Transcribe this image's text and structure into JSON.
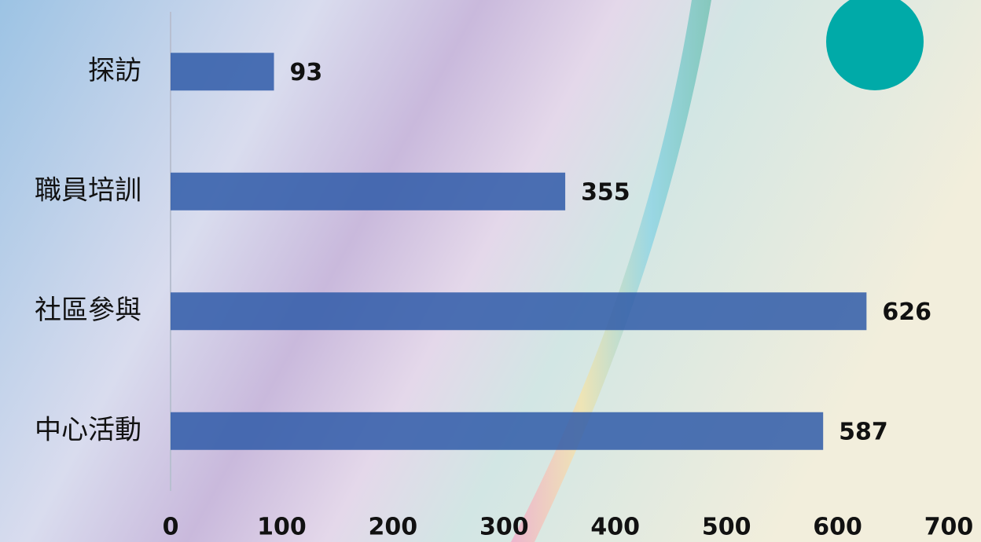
{
  "chart_data": {
    "type": "bar",
    "orientation": "horizontal",
    "categories": [
      "探訪",
      "職員培訓",
      "社區參與",
      "中心活動"
    ],
    "values": [
      93,
      355,
      626,
      587
    ],
    "color": "#2f5aa8",
    "xlim": [
      0,
      700
    ],
    "xticks": [
      0,
      100,
      200,
      300,
      400,
      500,
      600,
      700
    ],
    "grid": false
  }
}
